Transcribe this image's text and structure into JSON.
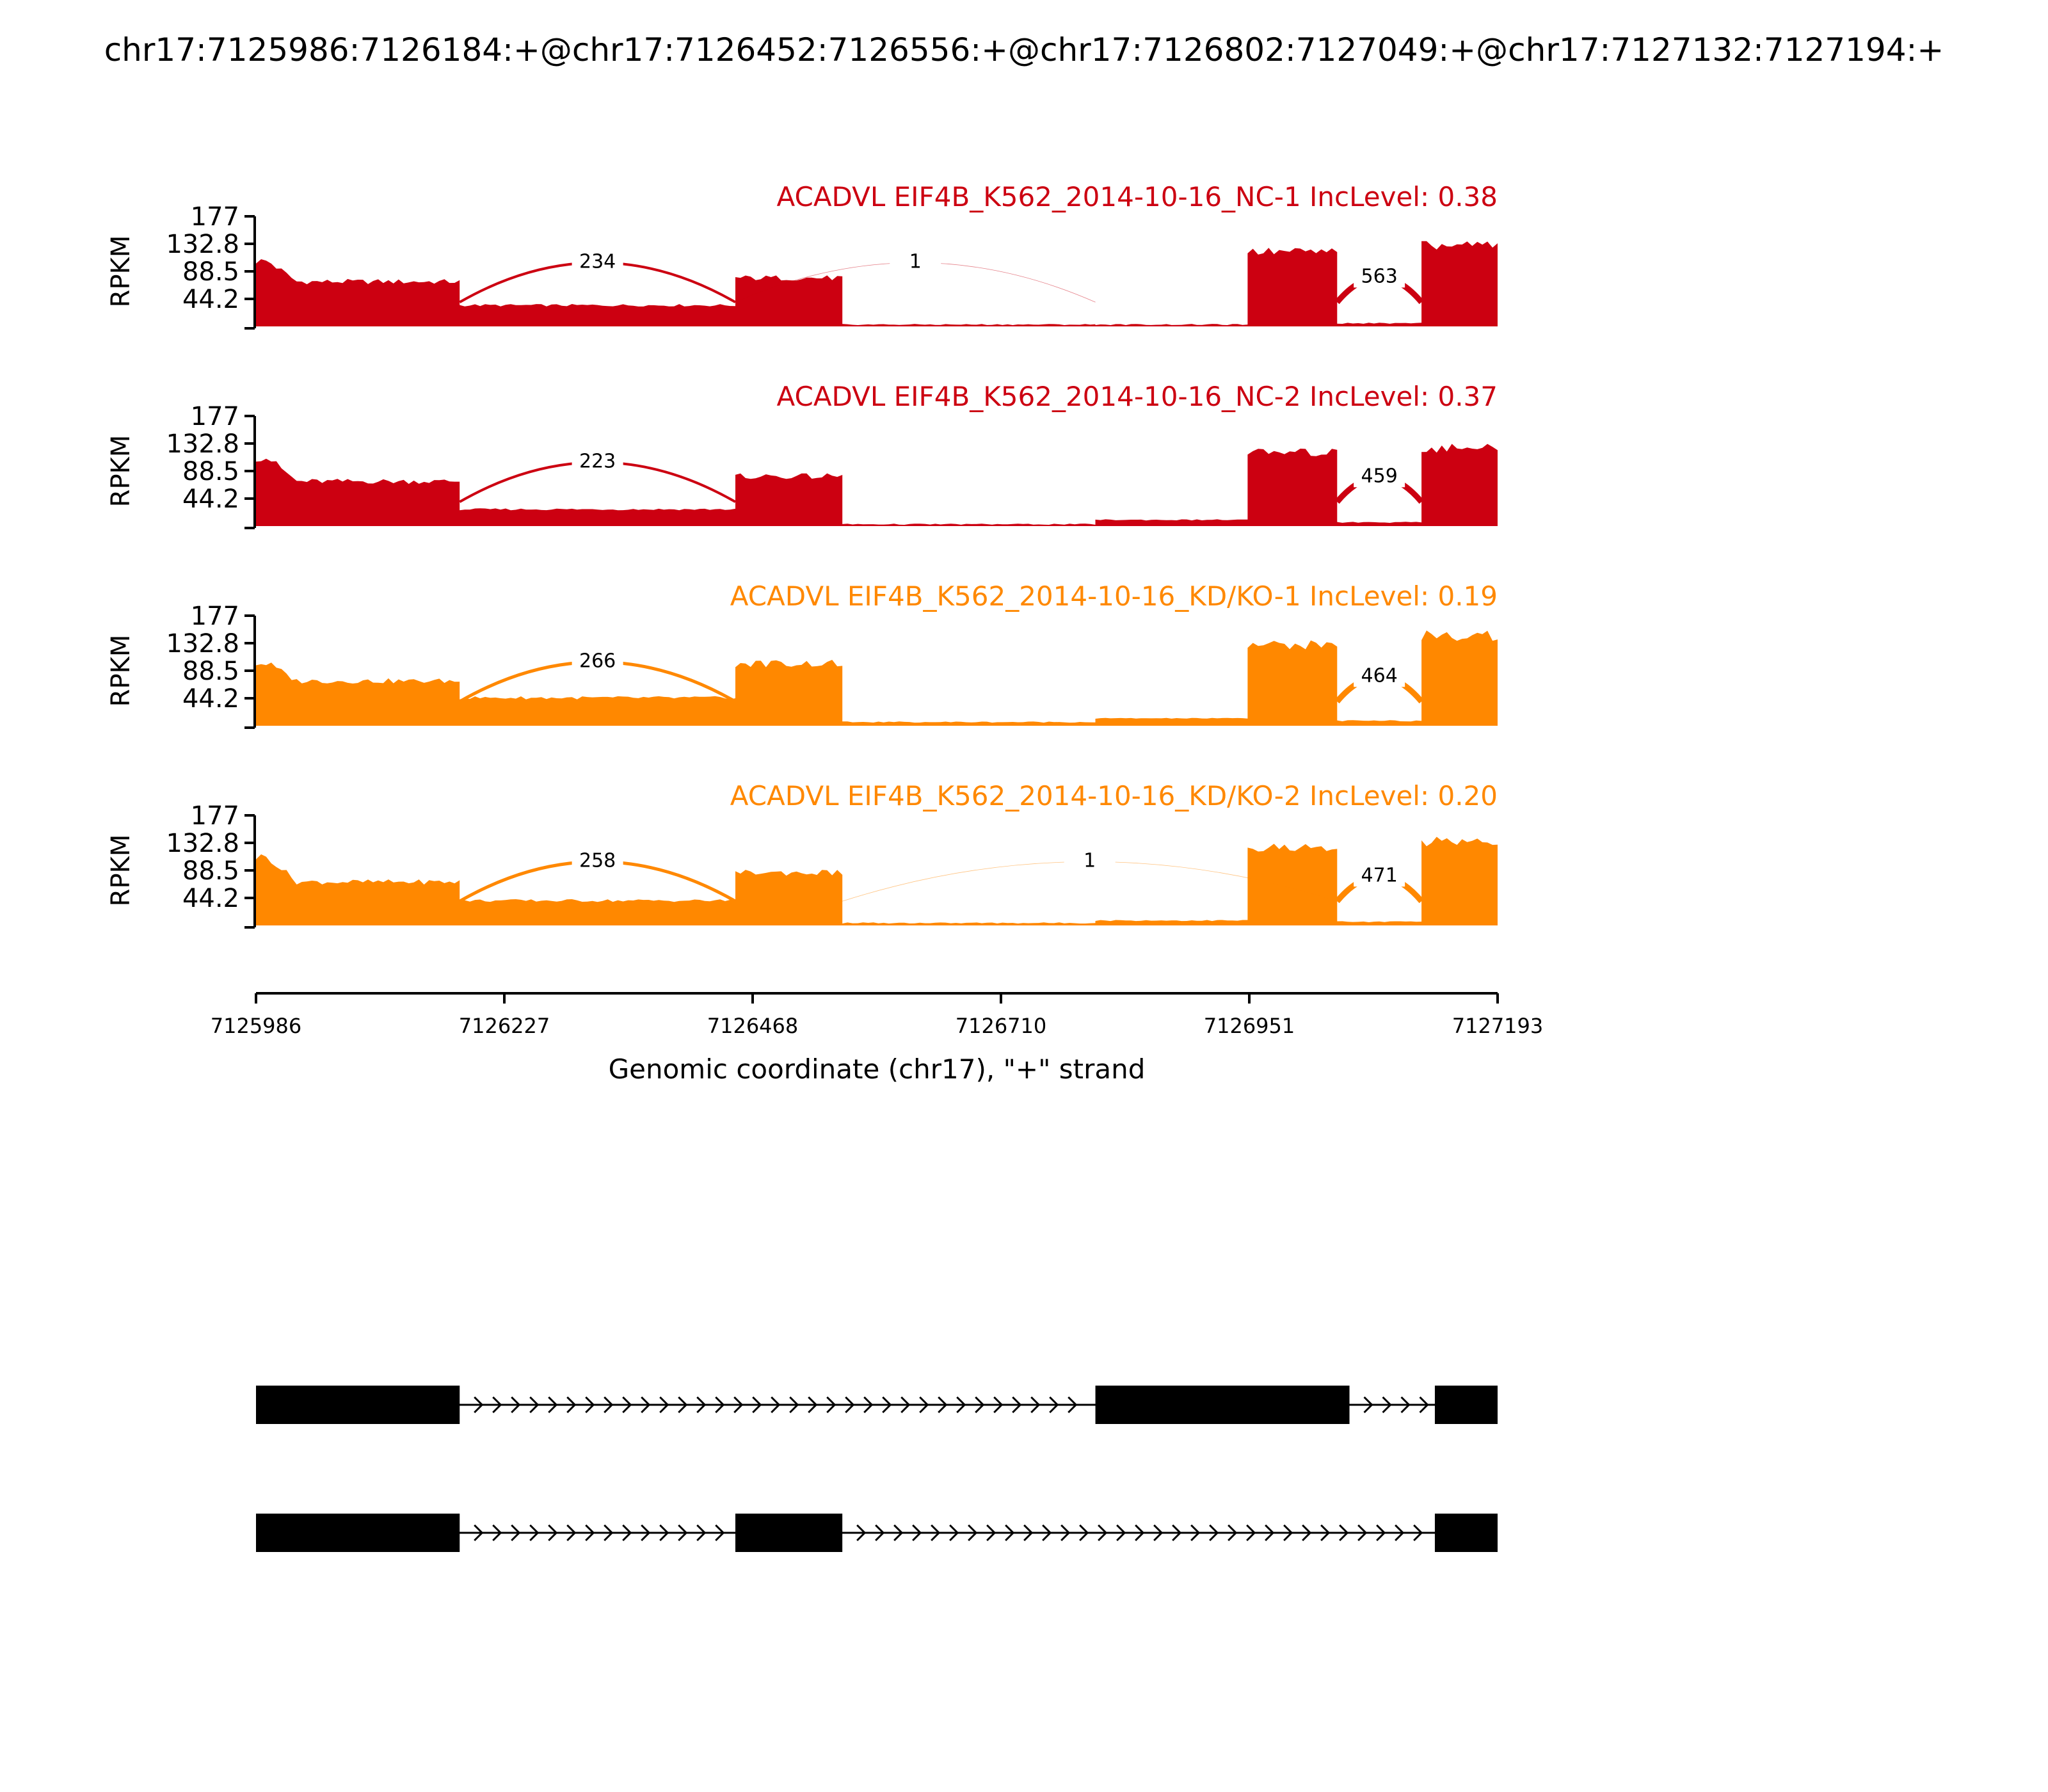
{
  "chart_data": {
    "type": "area",
    "title": "chr17:7125986:7126184:+@chr17:7126452:7126556:+@chr17:7126802:7127049:+@chr17:7127132:7127194:+",
    "xlabel": "Genomic coordinate (chr17), \"+\" strand",
    "ylabel": "RPKM",
    "xlim": [
      7125986,
      7127193
    ],
    "x_ticks": [
      "7125986",
      "7126227",
      "7126468",
      "7126710",
      "7126951",
      "7127193"
    ],
    "y_ticks": [
      "177",
      "132.8",
      "88.5",
      "44.2"
    ],
    "ylim": [
      0,
      177
    ],
    "colors": {
      "nc": "#cc0011",
      "kd": "#ff8800",
      "gene": "#000000"
    },
    "panels": [
      {
        "title": "ACADVL EIF4B_K562_2014-10-16_NC-1 IncLevel: 0.38",
        "color": "#cc0011",
        "coverage": [
          {
            "start": 7125986,
            "end": 7126184,
            "level": 72,
            "head": 105
          },
          {
            "start": 7126184,
            "end": 7126452,
            "level": 34
          },
          {
            "start": 7126452,
            "end": 7126556,
            "level": 78
          },
          {
            "start": 7126556,
            "end": 7126802,
            "level": 3
          },
          {
            "start": 7126802,
            "end": 7126950,
            "level": 3
          },
          {
            "start": 7126950,
            "end": 7127037,
            "level": 120
          },
          {
            "start": 7127037,
            "end": 7127119,
            "level": 5
          },
          {
            "start": 7127119,
            "end": 7127193,
            "level": 130
          }
        ],
        "junctions": [
          {
            "start": 7126184,
            "end": 7126452,
            "count": "234",
            "side": "above",
            "weight": 4
          },
          {
            "start": 7126452,
            "end": 7126802,
            "count": "1",
            "side": "above",
            "weight": 0.8
          },
          {
            "start": 7127037,
            "end": 7127119,
            "count": "563",
            "side": "above",
            "weight": 9
          }
        ]
      },
      {
        "title": "ACADVL EIF4B_K562_2014-10-16_NC-2 IncLevel: 0.37",
        "color": "#cc0011",
        "coverage": [
          {
            "start": 7125986,
            "end": 7126184,
            "level": 72,
            "head": 110
          },
          {
            "start": 7126184,
            "end": 7126452,
            "level": 27
          },
          {
            "start": 7126452,
            "end": 7126556,
            "level": 80
          },
          {
            "start": 7126556,
            "end": 7126802,
            "level": 3
          },
          {
            "start": 7126802,
            "end": 7126950,
            "level": 10
          },
          {
            "start": 7126950,
            "end": 7127037,
            "level": 118
          },
          {
            "start": 7127037,
            "end": 7127119,
            "level": 6
          },
          {
            "start": 7127119,
            "end": 7127193,
            "level": 125
          }
        ],
        "junctions": [
          {
            "start": 7126184,
            "end": 7126452,
            "count": "223",
            "side": "above",
            "weight": 4
          },
          {
            "start": 7127037,
            "end": 7127119,
            "count": "459",
            "side": "above",
            "weight": 9
          }
        ]
      },
      {
        "title": "ACADVL EIF4B_K562_2014-10-16_KD/KO-1 IncLevel: 0.19",
        "color": "#ff8800",
        "coverage": [
          {
            "start": 7125986,
            "end": 7126184,
            "level": 72,
            "head": 100
          },
          {
            "start": 7126184,
            "end": 7126452,
            "level": 45
          },
          {
            "start": 7126452,
            "end": 7126556,
            "level": 100
          },
          {
            "start": 7126556,
            "end": 7126802,
            "level": 6
          },
          {
            "start": 7126802,
            "end": 7126950,
            "level": 12
          },
          {
            "start": 7126950,
            "end": 7127037,
            "level": 130
          },
          {
            "start": 7127037,
            "end": 7127119,
            "level": 8
          },
          {
            "start": 7127119,
            "end": 7127193,
            "level": 145
          }
        ],
        "junctions": [
          {
            "start": 7126184,
            "end": 7126452,
            "count": "266",
            "side": "above",
            "weight": 5
          },
          {
            "start": 7127037,
            "end": 7127119,
            "count": "464",
            "side": "above",
            "weight": 9
          }
        ]
      },
      {
        "title": "ACADVL EIF4B_K562_2014-10-16_KD/KO-2 IncLevel: 0.20",
        "color": "#ff8800",
        "coverage": [
          {
            "start": 7125986,
            "end": 7126184,
            "level": 70,
            "head": 110
          },
          {
            "start": 7126184,
            "end": 7126452,
            "level": 40
          },
          {
            "start": 7126452,
            "end": 7126556,
            "level": 85
          },
          {
            "start": 7126556,
            "end": 7126802,
            "level": 4
          },
          {
            "start": 7126802,
            "end": 7126950,
            "level": 8
          },
          {
            "start": 7126950,
            "end": 7127037,
            "level": 125
          },
          {
            "start": 7127037,
            "end": 7127119,
            "level": 6
          },
          {
            "start": 7127119,
            "end": 7127193,
            "level": 135
          }
        ],
        "junctions": [
          {
            "start": 7126184,
            "end": 7126452,
            "count": "258",
            "side": "above",
            "weight": 5
          },
          {
            "start": 7126556,
            "end": 7127037,
            "count": "1",
            "side": "above",
            "weight": 0.8
          },
          {
            "start": 7127037,
            "end": 7127119,
            "count": "471",
            "side": "above",
            "weight": 9
          }
        ]
      }
    ],
    "gene_models": [
      {
        "exons": [
          [
            7125986,
            7126184
          ],
          [
            7126802,
            7127049
          ],
          [
            7127132,
            7127193
          ]
        ]
      },
      {
        "exons": [
          [
            7125986,
            7126184
          ],
          [
            7126452,
            7126556
          ],
          [
            7127132,
            7127193
          ]
        ]
      }
    ]
  }
}
